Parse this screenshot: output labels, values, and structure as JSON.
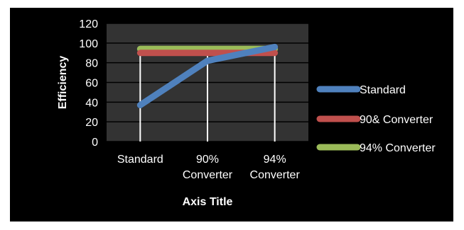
{
  "colors": {
    "background": "#000000",
    "plot_area": "#333333",
    "gridline": "#000000",
    "drop_line": "#ffffff",
    "text": "#ffffff"
  },
  "chart_data": {
    "type": "line",
    "title": "",
    "xlabel": "Axis Title",
    "ylabel": "Efficiency",
    "categories": [
      [
        "Standard"
      ],
      [
        "90%",
        "Converter"
      ],
      [
        "94%",
        "Converter"
      ]
    ],
    "ylim": [
      0,
      120
    ],
    "yticks": [
      0,
      20,
      40,
      60,
      80,
      100,
      120
    ],
    "grid": true,
    "legend_position": "right",
    "series": [
      {
        "name": "Standard",
        "values": [
          37,
          82,
          96
        ],
        "color": "#4f81bd"
      },
      {
        "name": "90& Converter",
        "values": [
          90,
          90,
          90
        ],
        "color": "#c0504d"
      },
      {
        "name": "94% Converter",
        "values": [
          94,
          94,
          94
        ],
        "color": "#9bbb59"
      }
    ]
  }
}
